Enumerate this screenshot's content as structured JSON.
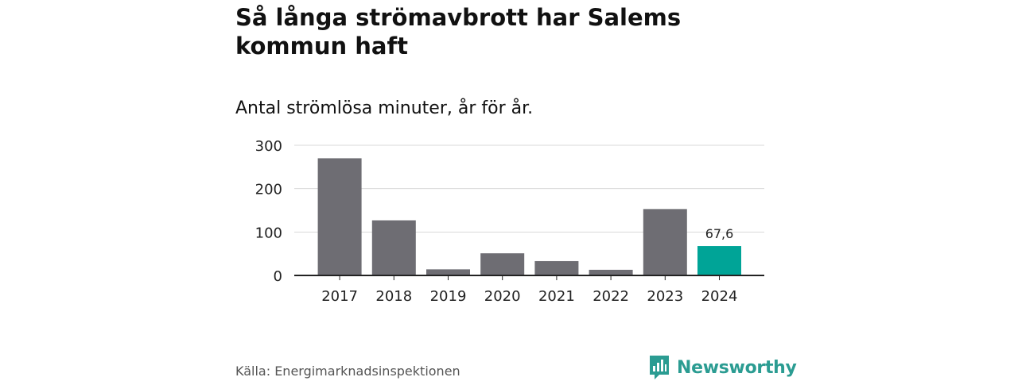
{
  "title": "Så långa strömavbrott har Salems kommun haft",
  "subtitle": "Antal strömlösa minuter, år för år.",
  "source": "Källa: Energimarknadsinspektionen",
  "brand": {
    "name": "Newsworthy",
    "icon": "newsworthy-logo-icon",
    "color": "#2b9c92"
  },
  "chart_data": {
    "type": "bar",
    "categories": [
      "2017",
      "2018",
      "2019",
      "2020",
      "2021",
      "2022",
      "2023",
      "2024"
    ],
    "values": [
      270,
      127,
      14,
      51,
      33,
      13,
      153,
      67.6
    ],
    "highlight_index": 7,
    "data_labels": [
      {
        "index": 7,
        "text": "67,6"
      }
    ],
    "ylim": [
      0,
      300
    ],
    "yticks": [
      0,
      100,
      200,
      300
    ],
    "ytick_labels": [
      "0",
      "100",
      "200",
      "300"
    ],
    "grid": true,
    "legend": "none",
    "colors": {
      "bar": "#6e6d73",
      "highlight": "#00a497",
      "grid": "#d9d9d9",
      "axis": "#222222"
    }
  }
}
